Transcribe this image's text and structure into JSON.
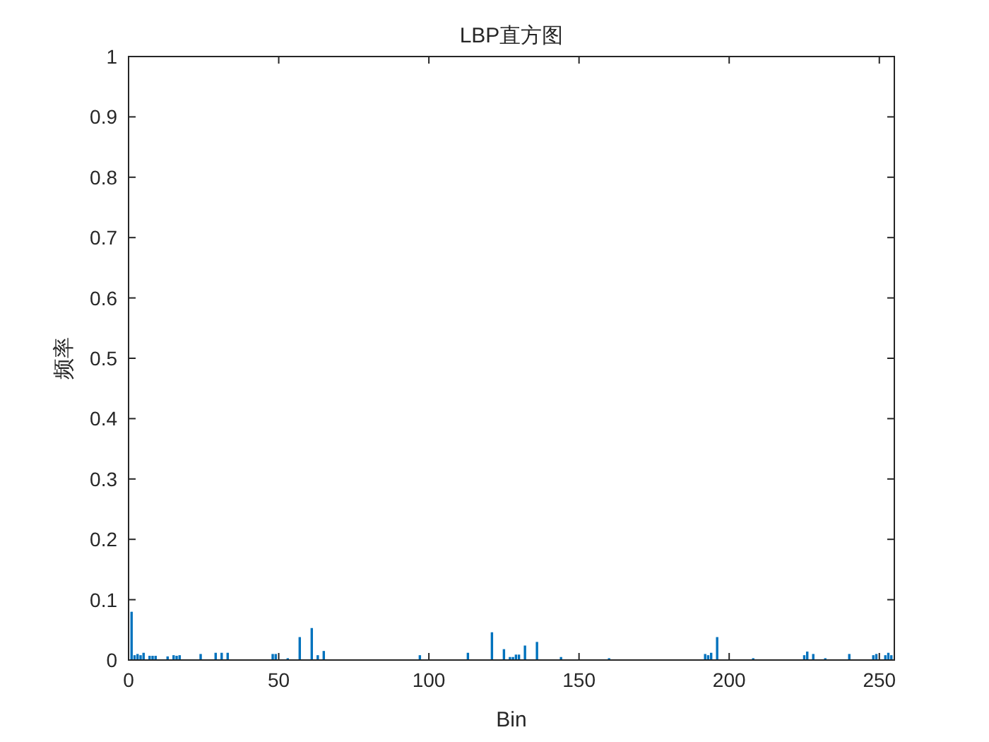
{
  "chart_data": {
    "type": "bar",
    "title": "LBP直方图",
    "xlabel": "Bin",
    "ylabel": "频率",
    "color": "#0072bd",
    "x": [
      1,
      2,
      3,
      4,
      5,
      7,
      8,
      9,
      13,
      15,
      16,
      17,
      24,
      29,
      31,
      33,
      48,
      49,
      53,
      57,
      61,
      63,
      65,
      97,
      113,
      121,
      125,
      127,
      128,
      129,
      130,
      132,
      136,
      144,
      160,
      192,
      193,
      194,
      196,
      208,
      225,
      226,
      228,
      232,
      240,
      248,
      249,
      252,
      253,
      254
    ],
    "values": [
      0.08,
      0.008,
      0.01,
      0.008,
      0.012,
      0.007,
      0.007,
      0.007,
      0.006,
      0.008,
      0.007,
      0.008,
      0.01,
      0.012,
      0.012,
      0.012,
      0.01,
      0.01,
      0.003,
      0.038,
      0.053,
      0.008,
      0.015,
      0.008,
      0.012,
      0.046,
      0.018,
      0.005,
      0.005,
      0.009,
      0.009,
      0.024,
      0.03,
      0.005,
      0.003,
      0.01,
      0.008,
      0.012,
      0.038,
      0.003,
      0.008,
      0.014,
      0.01,
      0.003,
      0.01,
      0.008,
      0.01,
      0.008,
      0.012,
      0.008
    ],
    "xlim": [
      0,
      255
    ],
    "xticks": [
      0,
      50,
      100,
      150,
      200,
      250
    ],
    "ylim": [
      0,
      1
    ],
    "yticks": [
      0,
      0.1,
      0.2,
      0.3,
      0.4,
      0.5,
      0.6,
      0.7,
      0.8,
      0.9,
      1
    ]
  }
}
